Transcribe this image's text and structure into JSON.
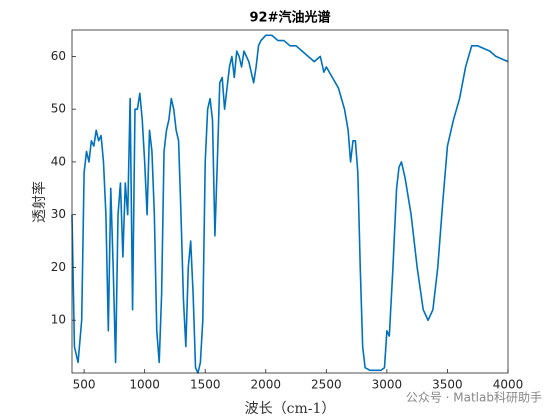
{
  "chart_data": {
    "type": "line",
    "title": "92#汽油光谱",
    "xlabel": "波长（cm-1）",
    "ylabel": "透射率",
    "watermark": "公众号 · Matlab科研助手",
    "xlim": [
      400,
      4000
    ],
    "xticks": [
      500,
      1000,
      1500,
      2000,
      2500,
      3000,
      3500,
      4000
    ],
    "ylim": [
      0,
      65
    ],
    "yticks": [
      10,
      20,
      30,
      40,
      50,
      60
    ],
    "x": [
      400,
      420,
      450,
      480,
      500,
      520,
      540,
      560,
      580,
      600,
      620,
      640,
      660,
      680,
      700,
      720,
      740,
      760,
      780,
      800,
      820,
      840,
      860,
      880,
      900,
      920,
      940,
      960,
      980,
      1000,
      1020,
      1040,
      1060,
      1080,
      1100,
      1120,
      1140,
      1160,
      1180,
      1200,
      1220,
      1240,
      1260,
      1280,
      1300,
      1320,
      1340,
      1360,
      1380,
      1400,
      1420,
      1440,
      1460,
      1480,
      1500,
      1520,
      1540,
      1560,
      1580,
      1600,
      1620,
      1640,
      1660,
      1680,
      1700,
      1720,
      1740,
      1760,
      1780,
      1800,
      1820,
      1840,
      1860,
      1880,
      1900,
      1920,
      1940,
      1960,
      2000,
      2050,
      2100,
      2150,
      2200,
      2250,
      2300,
      2350,
      2400,
      2450,
      2480,
      2500,
      2550,
      2600,
      2650,
      2680,
      2700,
      2720,
      2740,
      2760,
      2780,
      2800,
      2820,
      2860,
      2900,
      2950,
      2980,
      3000,
      3020,
      3050,
      3080,
      3100,
      3120,
      3150,
      3200,
      3250,
      3300,
      3340,
      3380,
      3420,
      3460,
      3500,
      3550,
      3600,
      3650,
      3700,
      3750,
      3800,
      3850,
      3900,
      3950,
      4000
    ],
    "series": [
      {
        "color": "#0072bd",
        "values": [
          30,
          5,
          2,
          10,
          38,
          42,
          40,
          44,
          43,
          46,
          44,
          45,
          40,
          30,
          8,
          35,
          20,
          2,
          30,
          36,
          22,
          36,
          30,
          52,
          12,
          50,
          50,
          53,
          48,
          40,
          30,
          46,
          42,
          30,
          8,
          2,
          15,
          42,
          46,
          48,
          52,
          50,
          46,
          44,
          30,
          14,
          5,
          20,
          25,
          15,
          1,
          0,
          2,
          10,
          40,
          50,
          52,
          48,
          26,
          40,
          55,
          56,
          50,
          54,
          58,
          60,
          56,
          61,
          60,
          58,
          61,
          60,
          59,
          57,
          55,
          58,
          62,
          63,
          64,
          64,
          63,
          63,
          62,
          62,
          61,
          60,
          59,
          60,
          57,
          58,
          56,
          54,
          50,
          46,
          40,
          44,
          44,
          38,
          20,
          5,
          1,
          0.5,
          0.5,
          0.5,
          1,
          8,
          7,
          20,
          35,
          39,
          40,
          37,
          30,
          20,
          12,
          10,
          12,
          20,
          32,
          43,
          48,
          52,
          58,
          62,
          62,
          61.5,
          61,
          60,
          59.5,
          59
        ]
      }
    ]
  }
}
